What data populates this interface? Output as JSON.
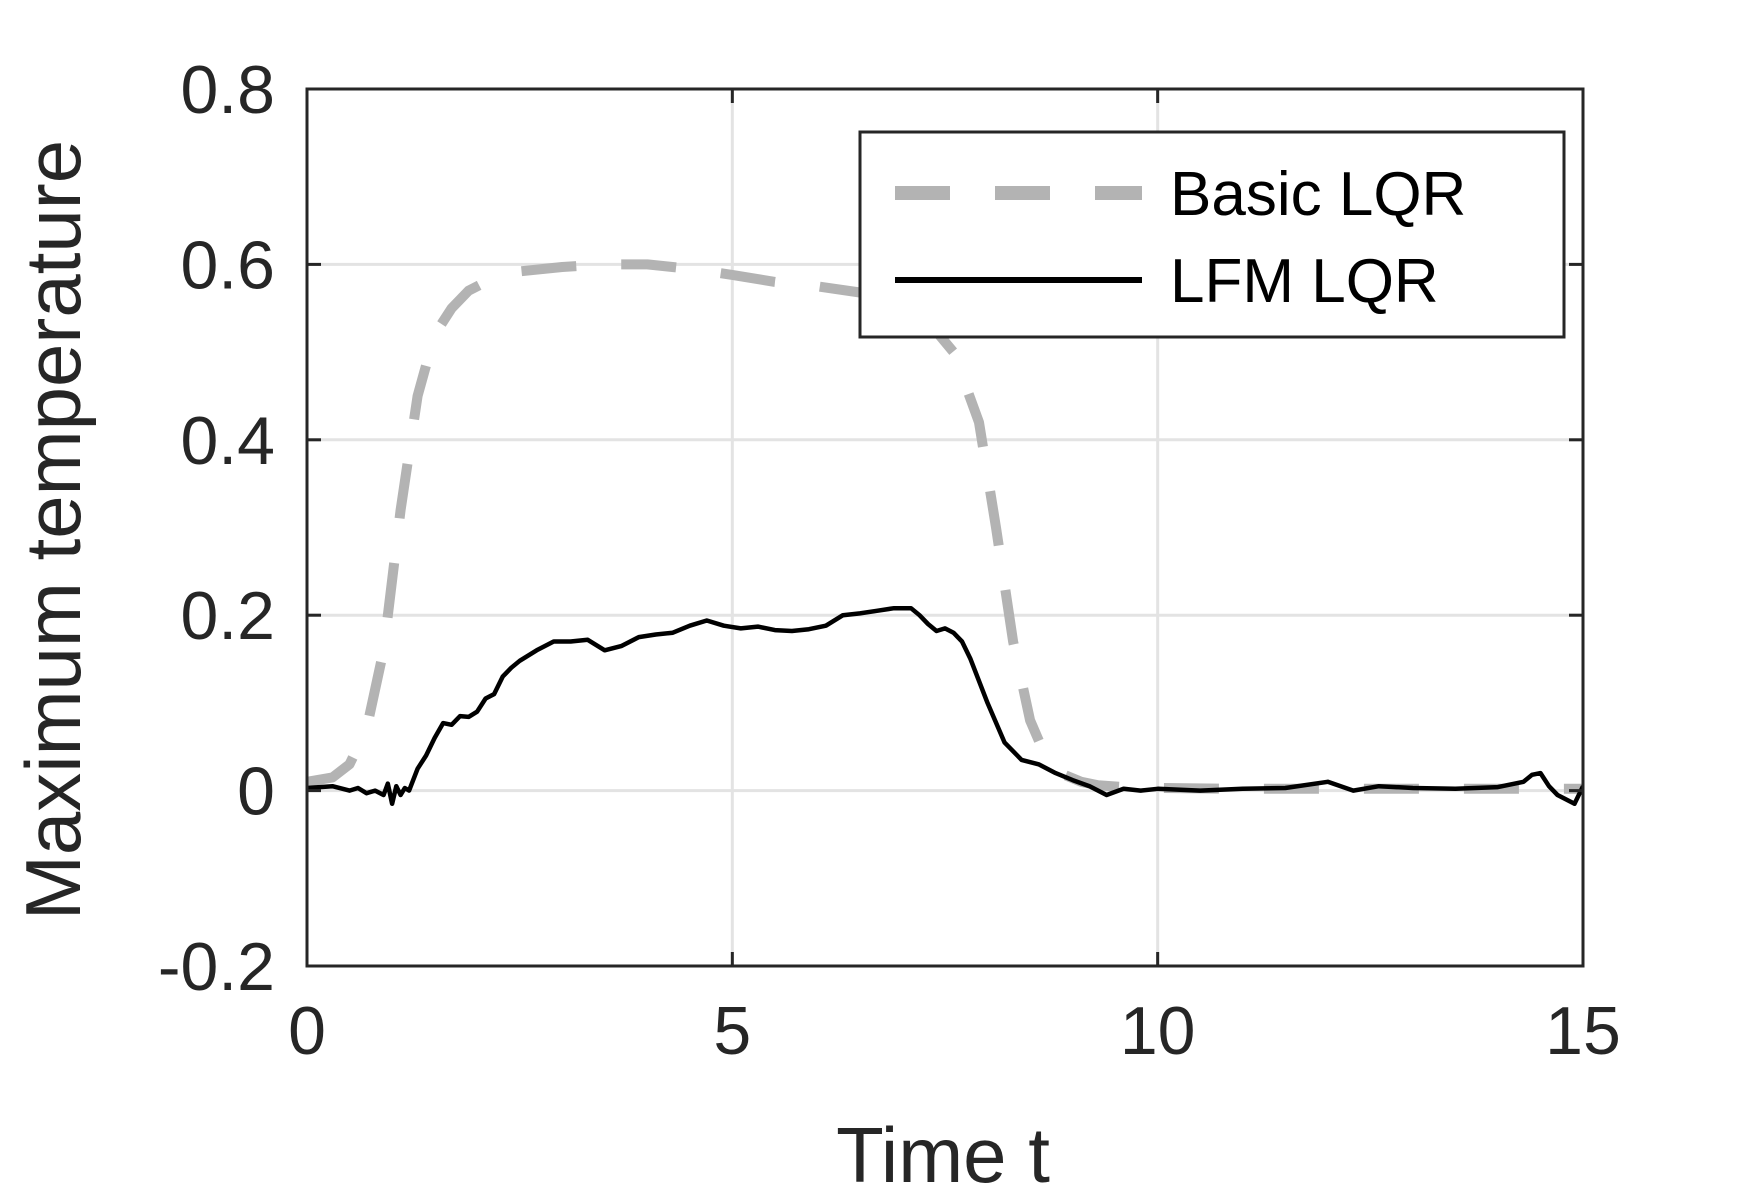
{
  "chart_data": {
    "type": "line",
    "title": "",
    "xlabel": "Time t",
    "ylabel": "Maximum temperature",
    "xlim": [
      0,
      15
    ],
    "ylim": [
      -0.2,
      0.8
    ],
    "xticks": [
      0,
      5,
      10,
      15
    ],
    "xtick_labels": [
      "0",
      "5",
      "10",
      "15"
    ],
    "yticks": [
      -0.2,
      0,
      0.2,
      0.4,
      0.6,
      0.8
    ],
    "ytick_labels": [
      "-0.2",
      "0",
      "0.2",
      "0.4",
      "0.6",
      "0.8"
    ],
    "grid": true,
    "legend_position": "top-right",
    "series": [
      {
        "name": "Basic LQR",
        "color": "#b3b3b3",
        "style": "dashed",
        "x": [
          0,
          0.3,
          0.5,
          0.7,
          0.9,
          1.1,
          1.3,
          1.5,
          1.7,
          1.9,
          2.2,
          2.5,
          3.0,
          3.5,
          4.0,
          4.5,
          5.0,
          5.5,
          6.0,
          6.5,
          7.0,
          7.3,
          7.6,
          7.9,
          8.1,
          8.3,
          8.5,
          8.7,
          8.9,
          9.1,
          9.3,
          9.6,
          10.0,
          11.0,
          12.0,
          13.0,
          14.0,
          15.0
        ],
        "y": [
          0.01,
          0.015,
          0.03,
          0.07,
          0.16,
          0.32,
          0.45,
          0.52,
          0.55,
          0.57,
          0.585,
          0.592,
          0.597,
          0.6,
          0.6,
          0.595,
          0.588,
          0.58,
          0.575,
          0.568,
          0.555,
          0.535,
          0.5,
          0.42,
          0.3,
          0.17,
          0.08,
          0.035,
          0.018,
          0.01,
          0.006,
          0.004,
          0.003,
          0.002,
          0.002,
          0.002,
          0.002,
          0.002
        ]
      },
      {
        "name": "LFM LQR",
        "color": "#000000",
        "style": "solid",
        "x": [
          0,
          0.3,
          0.5,
          0.6,
          0.7,
          0.8,
          0.9,
          0.95,
          1.0,
          1.05,
          1.1,
          1.15,
          1.2,
          1.3,
          1.4,
          1.5,
          1.6,
          1.7,
          1.8,
          1.9,
          2.0,
          2.1,
          2.2,
          2.3,
          2.4,
          2.5,
          2.7,
          2.9,
          3.1,
          3.3,
          3.5,
          3.7,
          3.9,
          4.1,
          4.3,
          4.5,
          4.7,
          4.9,
          5.1,
          5.3,
          5.5,
          5.7,
          5.9,
          6.1,
          6.3,
          6.5,
          6.7,
          6.9,
          7.1,
          7.2,
          7.3,
          7.4,
          7.5,
          7.6,
          7.7,
          7.8,
          8.0,
          8.2,
          8.4,
          8.6,
          8.8,
          9.0,
          9.2,
          9.4,
          9.6,
          9.8,
          10.0,
          10.5,
          11.0,
          11.5,
          12.0,
          12.3,
          12.6,
          13.0,
          13.5,
          14.0,
          14.3,
          14.4,
          14.5,
          14.6,
          14.7,
          14.8,
          14.9,
          15.0
        ],
        "y": [
          0.003,
          0.005,
          0.0,
          0.003,
          -0.003,
          0.0,
          -0.005,
          0.008,
          -0.015,
          0.005,
          -0.005,
          0.003,
          0.0,
          0.025,
          0.04,
          0.06,
          0.077,
          0.075,
          0.085,
          0.084,
          0.09,
          0.105,
          0.11,
          0.13,
          0.14,
          0.148,
          0.16,
          0.17,
          0.17,
          0.172,
          0.16,
          0.165,
          0.175,
          0.178,
          0.18,
          0.188,
          0.194,
          0.188,
          0.185,
          0.187,
          0.183,
          0.182,
          0.184,
          0.188,
          0.2,
          0.202,
          0.205,
          0.208,
          0.208,
          0.2,
          0.19,
          0.182,
          0.185,
          0.18,
          0.17,
          0.15,
          0.1,
          0.055,
          0.035,
          0.03,
          0.02,
          0.012,
          0.005,
          -0.005,
          0.002,
          0.0,
          0.002,
          0.0,
          0.002,
          0.003,
          0.01,
          0.0,
          0.005,
          0.003,
          0.002,
          0.004,
          0.01,
          0.018,
          0.02,
          0.005,
          -0.005,
          -0.01,
          -0.015,
          0.005
        ]
      }
    ]
  }
}
